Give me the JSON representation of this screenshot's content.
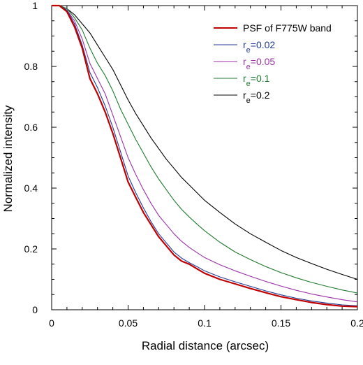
{
  "chart_data": {
    "type": "line",
    "xlabel": "Radial distance (arcsec)",
    "ylabel": "Normalized intensity",
    "xlim": [
      0,
      0.2
    ],
    "ylim": [
      0,
      1
    ],
    "xticks": [
      {
        "value": 0,
        "label": "0"
      },
      {
        "value": 0.05,
        "label": "0.05"
      },
      {
        "value": 0.1,
        "label": "0.1"
      },
      {
        "value": 0.15,
        "label": "0.15"
      },
      {
        "value": 0.2,
        "label": "0.2"
      }
    ],
    "yticks": [
      {
        "value": 0,
        "label": "0"
      },
      {
        "value": 0.2,
        "label": "0.2"
      },
      {
        "value": 0.4,
        "label": "0.4"
      },
      {
        "value": 0.6,
        "label": "0.6"
      },
      {
        "value": 0.8,
        "label": "0.8"
      },
      {
        "value": 1,
        "label": "1"
      }
    ],
    "grid": false,
    "legend_position": "top-right",
    "series": [
      {
        "name": "PSF of F775W band",
        "color": "#c00000",
        "x": [
          0,
          0.005,
          0.01,
          0.015,
          0.02,
          0.025,
          0.03,
          0.035,
          0.04,
          0.045,
          0.05,
          0.055,
          0.06,
          0.065,
          0.07,
          0.075,
          0.08,
          0.085,
          0.09,
          0.095,
          0.1,
          0.11,
          0.12,
          0.13,
          0.14,
          0.15,
          0.16,
          0.17,
          0.18,
          0.19,
          0.2
        ],
        "y": [
          1.0,
          1.0,
          0.98,
          0.93,
          0.86,
          0.76,
          0.71,
          0.65,
          0.58,
          0.5,
          0.42,
          0.37,
          0.32,
          0.28,
          0.24,
          0.21,
          0.18,
          0.16,
          0.15,
          0.135,
          0.12,
          0.1,
          0.085,
          0.07,
          0.056,
          0.043,
          0.033,
          0.024,
          0.017,
          0.012,
          0.01
        ]
      },
      {
        "name": "r_e=0.02",
        "label_prefix": "r",
        "label_sub": "e",
        "label_suffix": "=0.02",
        "color": "#1f3a93",
        "x": [
          0,
          0.005,
          0.01,
          0.015,
          0.02,
          0.025,
          0.03,
          0.035,
          0.04,
          0.045,
          0.05,
          0.055,
          0.06,
          0.065,
          0.07,
          0.075,
          0.08,
          0.085,
          0.09,
          0.095,
          0.1,
          0.11,
          0.12,
          0.13,
          0.14,
          0.15,
          0.16,
          0.17,
          0.18,
          0.19,
          0.2
        ],
        "y": [
          1.0,
          1.0,
          0.985,
          0.94,
          0.87,
          0.78,
          0.73,
          0.67,
          0.6,
          0.52,
          0.44,
          0.385,
          0.335,
          0.29,
          0.25,
          0.22,
          0.19,
          0.17,
          0.155,
          0.142,
          0.128,
          0.108,
          0.092,
          0.077,
          0.062,
          0.049,
          0.038,
          0.029,
          0.022,
          0.016,
          0.013
        ]
      },
      {
        "name": "r_e=0.05",
        "label_prefix": "r",
        "label_sub": "e",
        "label_suffix": "=0.05",
        "color": "#9b30a8",
        "x": [
          0,
          0.005,
          0.01,
          0.015,
          0.02,
          0.025,
          0.03,
          0.035,
          0.04,
          0.045,
          0.05,
          0.055,
          0.06,
          0.065,
          0.07,
          0.075,
          0.08,
          0.085,
          0.09,
          0.095,
          0.1,
          0.11,
          0.12,
          0.13,
          0.14,
          0.15,
          0.16,
          0.17,
          0.18,
          0.19,
          0.2
        ],
        "y": [
          1.0,
          1.0,
          0.985,
          0.95,
          0.89,
          0.81,
          0.76,
          0.71,
          0.64,
          0.57,
          0.5,
          0.445,
          0.395,
          0.35,
          0.31,
          0.28,
          0.25,
          0.225,
          0.205,
          0.188,
          0.172,
          0.148,
          0.128,
          0.11,
          0.093,
          0.078,
          0.064,
          0.052,
          0.042,
          0.033,
          0.026
        ]
      },
      {
        "name": "r_e=0.1",
        "label_prefix": "r",
        "label_sub": "e",
        "label_suffix": "=0.1",
        "color": "#1e7a2e",
        "x": [
          0,
          0.005,
          0.01,
          0.015,
          0.02,
          0.025,
          0.03,
          0.035,
          0.04,
          0.045,
          0.05,
          0.055,
          0.06,
          0.065,
          0.07,
          0.075,
          0.08,
          0.085,
          0.09,
          0.095,
          0.1,
          0.11,
          0.12,
          0.13,
          0.14,
          0.15,
          0.16,
          0.17,
          0.18,
          0.19,
          0.2
        ],
        "y": [
          1.0,
          1.0,
          0.99,
          0.96,
          0.92,
          0.86,
          0.81,
          0.77,
          0.72,
          0.66,
          0.61,
          0.56,
          0.515,
          0.47,
          0.43,
          0.395,
          0.36,
          0.33,
          0.305,
          0.282,
          0.26,
          0.222,
          0.19,
          0.165,
          0.142,
          0.122,
          0.105,
          0.09,
          0.077,
          0.065,
          0.055
        ]
      },
      {
        "name": "r_e=0.2",
        "label_prefix": "r",
        "label_sub": "e",
        "label_suffix": "=0.2",
        "color": "#000000",
        "x": [
          0,
          0.005,
          0.01,
          0.015,
          0.02,
          0.025,
          0.03,
          0.035,
          0.04,
          0.045,
          0.05,
          0.055,
          0.06,
          0.065,
          0.07,
          0.075,
          0.08,
          0.085,
          0.09,
          0.095,
          0.1,
          0.11,
          0.12,
          0.13,
          0.14,
          0.15,
          0.16,
          0.17,
          0.18,
          0.19,
          0.2
        ],
        "y": [
          1.0,
          1.0,
          0.99,
          0.97,
          0.94,
          0.91,
          0.87,
          0.83,
          0.79,
          0.74,
          0.69,
          0.645,
          0.605,
          0.565,
          0.53,
          0.495,
          0.465,
          0.435,
          0.41,
          0.385,
          0.36,
          0.32,
          0.282,
          0.25,
          0.222,
          0.195,
          0.172,
          0.152,
          0.133,
          0.116,
          0.1
        ]
      }
    ]
  }
}
